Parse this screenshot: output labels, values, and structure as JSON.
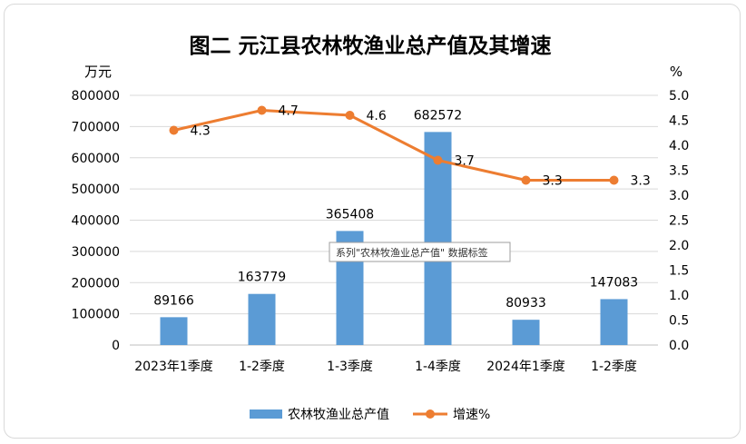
{
  "chart_data": {
    "type": "bar",
    "title": "图二    元江县农林牧渔业总产值及其增速",
    "y_unit_left": "万元",
    "y_unit_right": "%",
    "categories": [
      "2023年1季度",
      "1-2季度",
      "1-3季度",
      "1-4季度",
      "2024年1季度",
      "1-2季度"
    ],
    "ylim_left": [
      0,
      800000
    ],
    "yticks_left": [
      "800000",
      "700000",
      "600000",
      "500000",
      "400000",
      "300000",
      "200000",
      "100000",
      "0"
    ],
    "ylim_right": [
      0,
      5.0
    ],
    "yticks_right": [
      "5.0",
      "4.5",
      "4.0",
      "3.5",
      "3.0",
      "2.5",
      "2.0",
      "1.5",
      "1.0",
      "0.5",
      "0.0"
    ],
    "grid": true,
    "legend_position": "bottom",
    "series": [
      {
        "name": "农林牧渔业总产值",
        "type": "bar",
        "axis": "left",
        "color": "#5B9BD5",
        "values": [
          89166,
          163779,
          365408,
          682572,
          80933,
          147083
        ],
        "labels": [
          "89166",
          "163779",
          "365408",
          "682572",
          "80933",
          "147083"
        ]
      },
      {
        "name": "增速%",
        "type": "line",
        "axis": "right",
        "color": "#ED7D31",
        "values": [
          4.3,
          4.7,
          4.6,
          3.7,
          3.3,
          3.3
        ],
        "labels": [
          "4.3",
          "4.7",
          "4.6",
          "3.7",
          "3.3",
          "3.3"
        ]
      }
    ],
    "tooltip": "系列\"农林牧渔业总产值\" 数据标签"
  }
}
